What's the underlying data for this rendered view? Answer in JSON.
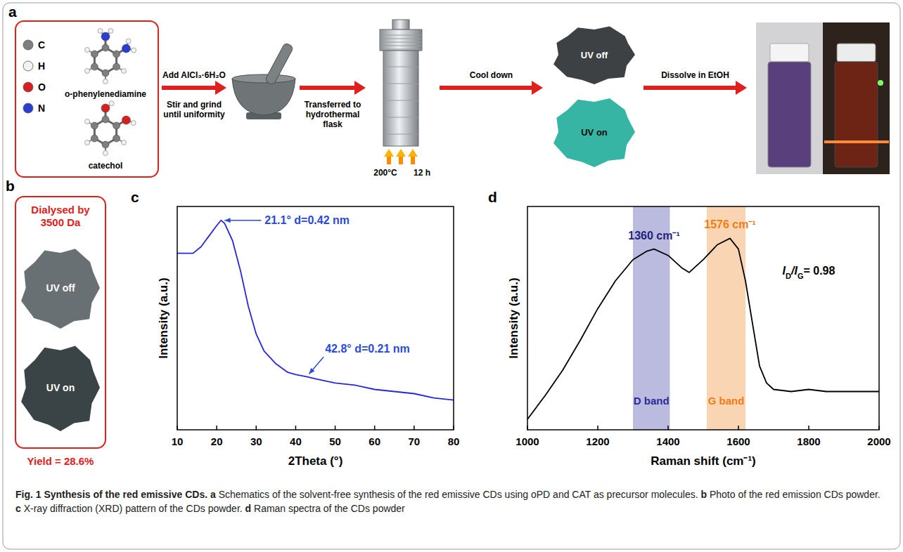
{
  "panel_letters": [
    "a",
    "b",
    "c",
    "d"
  ],
  "panel_a": {
    "atoms": [
      {
        "symbol": "C",
        "color": "#7f7f7f"
      },
      {
        "symbol": "H",
        "color": "#f2f2f2"
      },
      {
        "symbol": "O",
        "color": "#d62020"
      },
      {
        "symbol": "N",
        "color": "#2a3fd0"
      }
    ],
    "molecules": [
      "o-phenylenediamine",
      "catechol"
    ],
    "steps": [
      {
        "above": "Add AlCl₃·6H₂O",
        "below": "Stir and grind until uniformity"
      },
      {
        "below": "Transferred to hydrothermal flask"
      },
      {
        "above": "Cool down"
      },
      {
        "above": "Dissolve in EtOH"
      }
    ],
    "conditions": [
      "200°C",
      "12 h"
    ],
    "photo_labels": [
      "UV off",
      "UV on"
    ]
  },
  "panel_b": {
    "title": "Dialysed by 3500 Da",
    "photo_labels": [
      "UV off",
      "UV on"
    ],
    "yield": "Yield = 28.6%"
  },
  "chart_data": [
    {
      "type": "line",
      "x_label": "2Theta (°)",
      "y_label": "Intensity (a.u.)",
      "color": "#2626e0",
      "tick_labels": "x",
      "xlim": [
        10,
        80
      ],
      "xticks": [
        10,
        20,
        30,
        40,
        50,
        60,
        70,
        80
      ],
      "ylim": [
        0,
        105
      ],
      "x": [
        10,
        12,
        14,
        16,
        18,
        20,
        21.1,
        22,
        24,
        26,
        28,
        30,
        32,
        35,
        38,
        40,
        42.8,
        45,
        50,
        55,
        60,
        65,
        70,
        75,
        80
      ],
      "values": [
        83,
        83,
        83,
        86,
        91,
        96,
        98.5,
        97,
        89,
        75,
        58,
        45,
        37,
        31,
        27,
        26,
        25,
        24,
        22,
        21,
        19,
        18,
        17,
        15,
        14
      ],
      "annotations": [
        {
          "text": "21.1° d=0.42 nm",
          "x": 21.1,
          "y": 98.5,
          "color": "#2a4bd7",
          "arrow": true
        },
        {
          "text": "42.8° d=0.21 nm",
          "x": 42.8,
          "y": 25,
          "color": "#2a4bd7",
          "arrow": true
        }
      ]
    },
    {
      "type": "line",
      "x_label": "Raman shift (cm⁻¹)",
      "y_label": "Intensity (a.u.)",
      "color": "#000000",
      "tick_labels": "x",
      "xlim": [
        1000,
        2000
      ],
      "xticks": [
        1000,
        1200,
        1400,
        1600,
        1800,
        2000
      ],
      "ylim": [
        0,
        105
      ],
      "x": [
        1000,
        1050,
        1100,
        1150,
        1200,
        1250,
        1300,
        1340,
        1360,
        1400,
        1440,
        1460,
        1500,
        1540,
        1576,
        1600,
        1620,
        1640,
        1660,
        1680,
        1700,
        1750,
        1800,
        1850,
        1900,
        1950,
        2000
      ],
      "values": [
        5,
        16,
        28,
        42,
        57,
        70,
        80,
        84,
        85,
        82,
        76,
        74,
        80,
        87,
        90,
        85,
        70,
        50,
        30,
        22,
        19,
        18,
        19,
        18,
        18,
        18,
        18
      ],
      "bands": [
        {
          "label": "D band",
          "range": [
            1300,
            1405
          ],
          "color": "#2b2b9a"
        },
        {
          "label": "G band",
          "range": [
            1510,
            1620
          ],
          "color": "#f07d14"
        }
      ],
      "annotations": [
        {
          "text": "1360 cm⁻¹",
          "x": 1360,
          "y": 85,
          "color": "#23237a"
        },
        {
          "text": "1576 cm⁻¹",
          "x": 1576,
          "y": 90,
          "color": "#f07d14"
        },
        {
          "parts": [
            {
              "text": "I"
            },
            {
              "text": "D",
              "sub": true
            },
            {
              "text": "/I"
            },
            {
              "text": "G",
              "sub": true
            },
            {
              "text": "= 0.98"
            }
          ],
          "x": 1800,
          "y": 75,
          "color": "#000000"
        }
      ]
    }
  ],
  "caption": [
    {
      "text": "Fig. 1 Synthesis of the red emissive CDs.",
      "bold": true
    },
    {
      "text": "a",
      "bold": true
    },
    {
      "text": "Schematics of the solvent-free synthesis of the red emissive CDs using oPD and CAT as precursor molecules.",
      "bold": false
    },
    {
      "text": "b",
      "bold": true
    },
    {
      "text": "Photo of the red emission CDs powder.",
      "bold": false
    },
    {
      "text": "c",
      "bold": true
    },
    {
      "text": "X-ray diffraction (XRD) pattern of the CDs powder.",
      "bold": false
    },
    {
      "text": "d",
      "bold": true
    },
    {
      "text": "Raman spectra of the CDs powder",
      "bold": false
    }
  ]
}
